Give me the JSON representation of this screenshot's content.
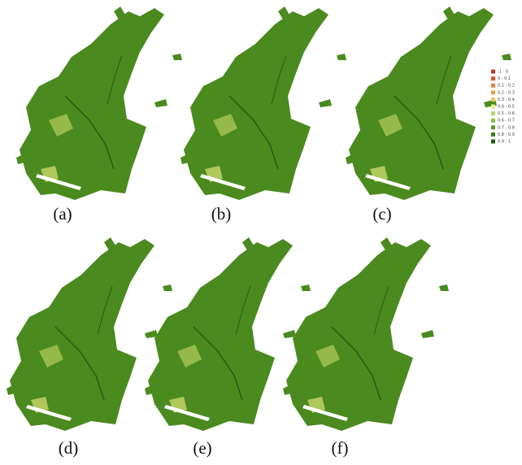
{
  "panels": [
    {
      "label": "(a)"
    },
    {
      "label": "(b)"
    },
    {
      "label": "(c)"
    },
    {
      "label": "(d)"
    },
    {
      "label": "(e)"
    },
    {
      "label": "(f)"
    }
  ],
  "legend": [
    {
      "label": "-1 - 0",
      "color": "#c0392b"
    },
    {
      "label": "0 - 0.1",
      "color": "#d9582c"
    },
    {
      "label": "0.1 - 0.2",
      "color": "#e8823a"
    },
    {
      "label": "0.2 - 0.3",
      "color": "#eda24a"
    },
    {
      "label": "0.3 - 0.4",
      "color": "#e8c85a"
    },
    {
      "label": "0.4 - 0.5",
      "color": "#eee98a"
    },
    {
      "label": "0.5 - 0.6",
      "color": "#bcd46a"
    },
    {
      "label": "0.6 - 0.7",
      "color": "#8fbb48"
    },
    {
      "label": "0.7 - 0.8",
      "color": "#5e9a2a"
    },
    {
      "label": "0.8 - 0.9",
      "color": "#3f7d1c"
    },
    {
      "label": "0.9 - 1",
      "color": "#1f5c10"
    }
  ]
}
